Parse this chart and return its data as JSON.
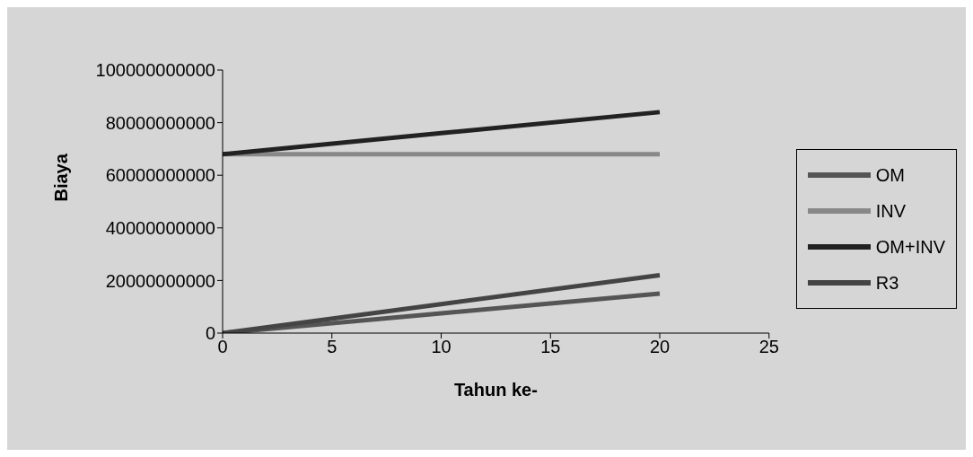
{
  "chart_data": {
    "type": "line",
    "xlabel": "Tahun ke-",
    "ylabel": "Biaya",
    "xlim": [
      0,
      25
    ],
    "xticks": [
      0,
      5,
      10,
      15,
      20,
      25
    ],
    "ylim": [
      0,
      100000000000
    ],
    "yticks": [
      0,
      20000000000,
      40000000000,
      60000000000,
      80000000000,
      100000000000
    ],
    "grid": false,
    "legend": "right",
    "marker": "none",
    "line_style": "solid",
    "series": [
      {
        "name": "OM",
        "color": "#555555",
        "x": [
          0,
          10,
          20
        ],
        "values": [
          0,
          7500000000,
          15000000000
        ]
      },
      {
        "name": "INV",
        "color": "#888888",
        "x": [
          0,
          10,
          20
        ],
        "values": [
          68000000000,
          68000000000,
          68000000000
        ]
      },
      {
        "name": "OM+INV",
        "color": "#222222",
        "x": [
          0,
          10,
          20
        ],
        "values": [
          68000000000,
          76000000000,
          84000000000
        ]
      },
      {
        "name": "R3",
        "color": "#444444",
        "x": [
          0,
          10,
          20
        ],
        "values": [
          0,
          11000000000,
          22000000000
        ]
      }
    ]
  }
}
